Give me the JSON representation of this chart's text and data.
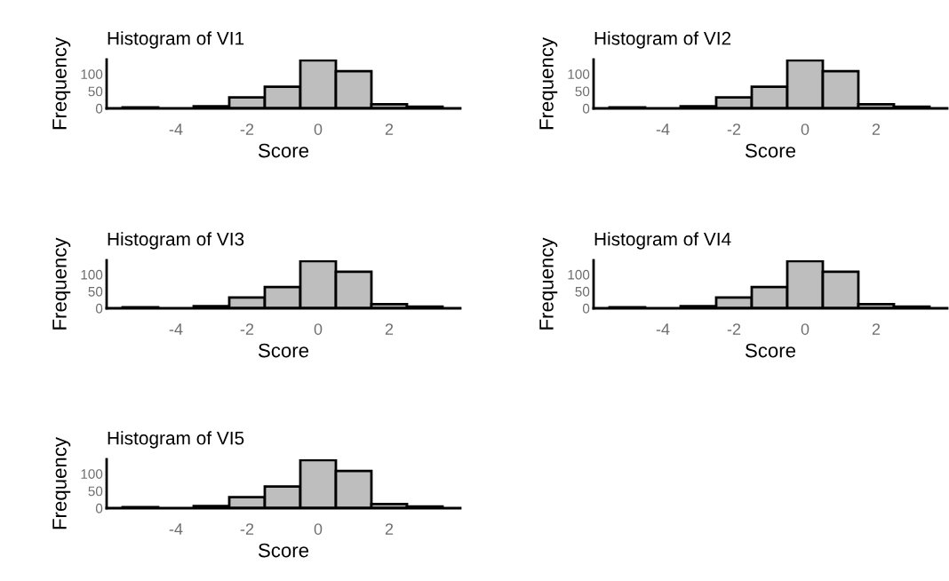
{
  "chart_data": [
    {
      "type": "histogram",
      "title": "Histogram of VI1",
      "xlabel": "Score",
      "ylabel": "Frequency",
      "bins": [
        -5.5,
        -4.5,
        -3.5,
        -2.5,
        -1.5,
        -0.5,
        0.5,
        1.5,
        2.5,
        3.5
      ],
      "values": [
        3,
        null,
        6,
        32,
        63,
        140,
        108,
        12,
        5
      ],
      "color": "#bebebe",
      "xlim": [
        -5.95,
        4.0
      ],
      "xticks": [
        -4,
        -2,
        0,
        2
      ],
      "ylim": [
        0,
        142
      ],
      "yticks": [
        0,
        50,
        100
      ]
    },
    {
      "type": "histogram",
      "title": "Histogram of VI2",
      "xlabel": "Score",
      "ylabel": "Frequency",
      "bins": [
        -5.5,
        -4.5,
        -3.5,
        -2.5,
        -1.5,
        -0.5,
        0.5,
        1.5,
        2.5,
        3.5
      ],
      "values": [
        3,
        null,
        6,
        32,
        63,
        140,
        108,
        12,
        5
      ],
      "color": "#bebebe",
      "xlim": [
        -5.95,
        4.0
      ],
      "xticks": [
        -4,
        -2,
        0,
        2
      ],
      "ylim": [
        0,
        142
      ],
      "yticks": [
        0,
        50,
        100
      ]
    },
    {
      "type": "histogram",
      "title": "Histogram of VI3",
      "xlabel": "Score",
      "ylabel": "Frequency",
      "bins": [
        -5.5,
        -4.5,
        -3.5,
        -2.5,
        -1.5,
        -0.5,
        0.5,
        1.5,
        2.5,
        3.5
      ],
      "values": [
        3,
        null,
        6,
        32,
        63,
        140,
        108,
        12,
        5
      ],
      "color": "#bebebe",
      "xlim": [
        -5.95,
        4.0
      ],
      "xticks": [
        -4,
        -2,
        0,
        2
      ],
      "ylim": [
        0,
        142
      ],
      "yticks": [
        0,
        50,
        100
      ]
    },
    {
      "type": "histogram",
      "title": "Histogram of VI4",
      "xlabel": "Score",
      "ylabel": "Frequency",
      "bins": [
        -5.5,
        -4.5,
        -3.5,
        -2.5,
        -1.5,
        -0.5,
        0.5,
        1.5,
        2.5,
        3.5
      ],
      "values": [
        3,
        null,
        6,
        32,
        63,
        140,
        108,
        12,
        5
      ],
      "color": "#bebebe",
      "xlim": [
        -5.95,
        4.0
      ],
      "xticks": [
        -4,
        -2,
        0,
        2
      ],
      "ylim": [
        0,
        142
      ],
      "yticks": [
        0,
        50,
        100
      ]
    },
    {
      "type": "histogram",
      "title": "Histogram of VI5",
      "xlabel": "Score",
      "ylabel": "Frequency",
      "bins": [
        -5.5,
        -4.5,
        -3.5,
        -2.5,
        -1.5,
        -0.5,
        0.5,
        1.5,
        2.5,
        3.5
      ],
      "values": [
        3,
        null,
        6,
        32,
        63,
        140,
        108,
        12,
        5
      ],
      "color": "#bebebe",
      "xlim": [
        -5.95,
        4.0
      ],
      "xticks": [
        -4,
        -2,
        0,
        2
      ],
      "ylim": [
        0,
        142
      ],
      "yticks": [
        0,
        50,
        100
      ]
    }
  ]
}
